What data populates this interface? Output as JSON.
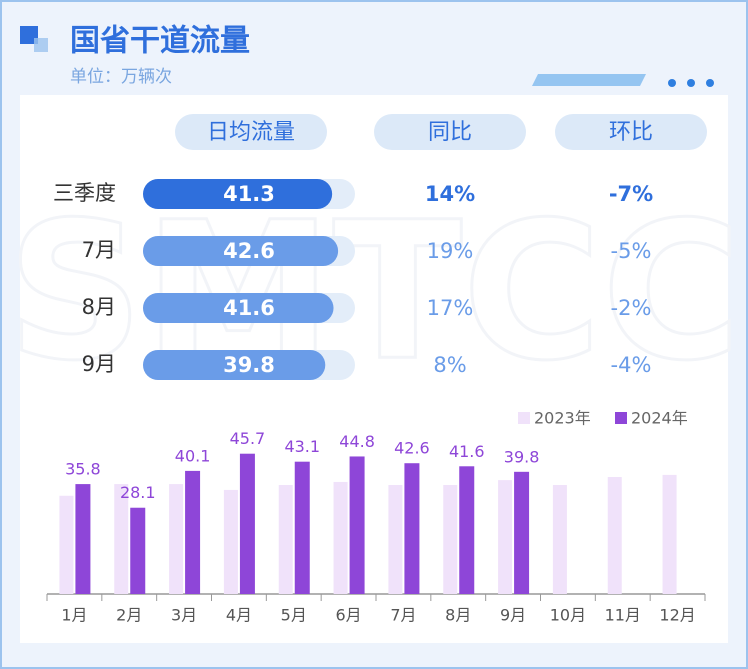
{
  "header": {
    "title": "国省干道流量",
    "subtitle": "单位：万辆次",
    "watermark": "SMTCC"
  },
  "table": {
    "columns": [
      "日均流量",
      "同比",
      "环比"
    ],
    "rows": [
      {
        "label": "三季度",
        "value": 41.3,
        "yoy": "14%",
        "mom": "-7%"
      },
      {
        "label": "7月",
        "value": 42.6,
        "yoy": "19%",
        "mom": "-5%"
      },
      {
        "label": "8月",
        "value": 41.6,
        "yoy": "17%",
        "mom": "-2%"
      },
      {
        "label": "9月",
        "value": 39.8,
        "yoy": "8%",
        "mom": "-4%"
      }
    ]
  },
  "chart_data": {
    "type": "bar",
    "categories": [
      "1月",
      "2月",
      "3月",
      "4月",
      "5月",
      "6月",
      "7月",
      "8月",
      "9月",
      "10月",
      "11月",
      "12月"
    ],
    "series": [
      {
        "name": "2023年",
        "color": "#f0e2fa",
        "values": [
          32,
          35.8,
          35.8,
          33.9,
          35.5,
          36.5,
          35.5,
          35.5,
          37.1,
          35.5,
          38.1,
          38.8
        ]
      },
      {
        "name": "2024年",
        "color": "#8e46d8",
        "values": [
          35.8,
          28.1,
          40.1,
          45.7,
          43.1,
          44.8,
          42.6,
          41.6,
          39.8,
          null,
          null,
          null
        ]
      }
    ],
    "ylim": [
      0,
      50
    ],
    "legend": "top-right"
  }
}
